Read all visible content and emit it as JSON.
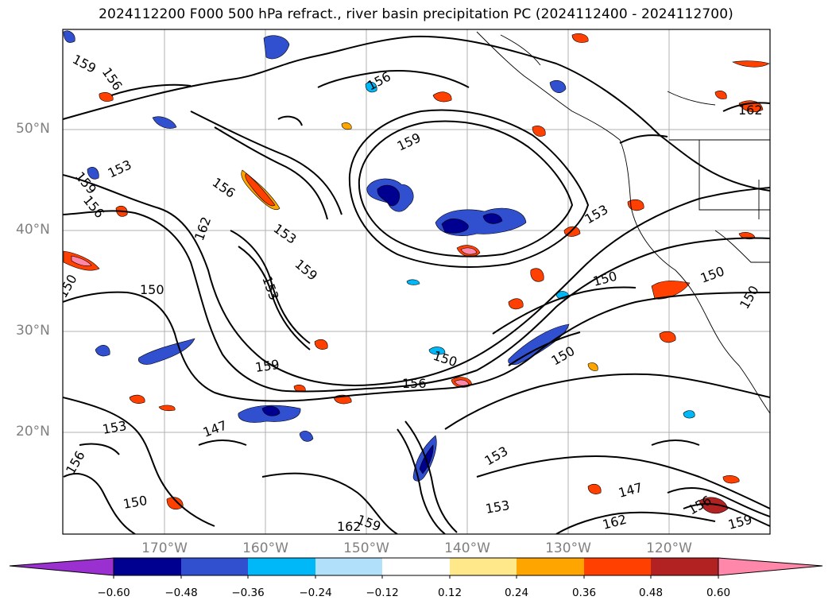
{
  "title": "2024112200 F000 500 hPa refract., river basin precipitation PC (2024112400 - 2024112700)",
  "lat_labels": [
    "50°N",
    "40°N",
    "30°N",
    "20°N"
  ],
  "lon_labels": [
    "170°W",
    "160°W",
    "150°W",
    "140°W",
    "130°W",
    "120°W"
  ],
  "contour_labels": [
    "159",
    "156",
    "156",
    "159",
    "162",
    "153",
    "159",
    "156",
    "156",
    "153",
    "159",
    "150",
    "153",
    "162",
    "150",
    "153",
    "150",
    "150",
    "150",
    "159",
    "156",
    "150",
    "147",
    "153",
    "156",
    "153",
    "150",
    "147",
    "153",
    "162",
    "159",
    "162",
    "150",
    "156",
    "159"
  ],
  "colorbar": {
    "ticks": [
      "−0.60",
      "−0.48",
      "−0.36",
      "−0.24",
      "−0.12",
      "0.12",
      "0.24",
      "0.36",
      "0.48",
      "0.60"
    ],
    "colors": [
      "#9b30d0",
      "#000090",
      "#3050d0",
      "#00b8f8",
      "#b0e0fa",
      "#ffffff",
      "#ffe88a",
      "#ffa500",
      "#ff4000",
      "#b22222",
      "#ff88aa"
    ]
  }
}
